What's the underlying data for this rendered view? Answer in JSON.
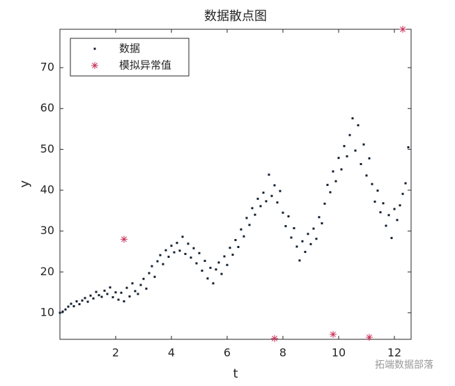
{
  "chart_data": {
    "type": "scatter",
    "title": "数据散点图",
    "xlabel": "t",
    "ylabel": "y",
    "xlim": [
      0,
      12.6
    ],
    "ylim": [
      3.5,
      79.4
    ],
    "xticks": [
      2,
      4,
      6,
      8,
      10,
      12
    ],
    "yticks": [
      10,
      20,
      30,
      40,
      50,
      60,
      70
    ],
    "legend": "upper left",
    "watermark": "拓端数据部落",
    "series": [
      {
        "name": "数据",
        "color": "#0f1e2e",
        "marker": "square",
        "x": [
          0.0,
          0.1,
          0.2,
          0.3,
          0.4,
          0.5,
          0.6,
          0.7,
          0.8,
          0.9,
          1.0,
          1.1,
          1.2,
          1.3,
          1.4,
          1.5,
          1.6,
          1.7,
          1.8,
          1.9,
          2.0,
          2.1,
          2.2,
          2.3,
          2.4,
          2.5,
          2.6,
          2.7,
          2.8,
          2.9,
          3.0,
          3.1,
          3.2,
          3.3,
          3.4,
          3.5,
          3.6,
          3.7,
          3.8,
          3.9,
          4.0,
          4.1,
          4.2,
          4.3,
          4.4,
          4.5,
          4.6,
          4.7,
          4.8,
          4.9,
          5.0,
          5.1,
          5.2,
          5.3,
          5.4,
          5.5,
          5.6,
          5.7,
          5.8,
          5.9,
          6.0,
          6.1,
          6.2,
          6.3,
          6.4,
          6.5,
          6.6,
          6.7,
          6.8,
          6.9,
          7.0,
          7.1,
          7.2,
          7.3,
          7.4,
          7.5,
          7.6,
          7.7,
          7.8,
          7.9,
          8.0,
          8.1,
          8.2,
          8.3,
          8.4,
          8.5,
          8.6,
          8.7,
          8.8,
          8.9,
          9.0,
          9.1,
          9.2,
          9.3,
          9.4,
          9.5,
          9.6,
          9.7,
          9.8,
          9.9,
          10.0,
          10.1,
          10.2,
          10.3,
          10.4,
          10.5,
          10.6,
          10.7,
          10.8,
          10.9,
          11.0,
          11.1,
          11.2,
          11.3,
          11.4,
          11.5,
          11.6,
          11.7,
          11.8,
          11.9,
          12.0,
          12.1,
          12.2,
          12.3,
          12.4,
          12.5
        ],
        "values": [
          10.0,
          10.3,
          10.8,
          11.5,
          12.2,
          11.6,
          12.8,
          12.1,
          13.0,
          13.6,
          12.7,
          14.2,
          13.5,
          15.1,
          14.3,
          13.9,
          15.4,
          14.6,
          16.2,
          13.8,
          15.0,
          13.2,
          14.9,
          12.8,
          16.1,
          14.0,
          17.2,
          15.3,
          14.6,
          16.8,
          18.3,
          15.9,
          19.7,
          21.4,
          18.8,
          22.6,
          24.1,
          21.9,
          25.3,
          23.7,
          26.4,
          24.8,
          27.1,
          25.2,
          28.6,
          24.4,
          26.9,
          23.5,
          25.8,
          22.1,
          24.6,
          20.3,
          22.7,
          18.4,
          21.0,
          17.2,
          20.6,
          22.3,
          19.5,
          23.8,
          21.7,
          25.9,
          24.2,
          27.8,
          26.1,
          30.4,
          28.7,
          33.2,
          31.5,
          35.6,
          34.0,
          37.9,
          36.1,
          39.4,
          37.3,
          43.8,
          38.6,
          41.2,
          37.0,
          39.8,
          34.5,
          31.2,
          33.6,
          28.4,
          30.7,
          26.2,
          22.8,
          27.5,
          24.9,
          29.3,
          26.8,
          30.6,
          28.1,
          33.4,
          31.9,
          36.7,
          41.3,
          39.5,
          44.6,
          42.2,
          47.9,
          45.1,
          50.8,
          48.3,
          53.5,
          57.6,
          49.7,
          55.9,
          46.4,
          51.2,
          43.6,
          47.8,
          41.5,
          37.2,
          39.9,
          34.6,
          36.8,
          31.3,
          33.9,
          28.3,
          35.4,
          32.7,
          36.3,
          39.1,
          41.7,
          50.5
        ]
      },
      {
        "name": "模拟异常值",
        "color": "#c8305a",
        "marker": "star",
        "x": [
          2.3,
          7.7,
          9.8,
          11.1,
          12.3
        ],
        "values": [
          28,
          3.7,
          4.7,
          4.0,
          79.4
        ]
      }
    ]
  }
}
